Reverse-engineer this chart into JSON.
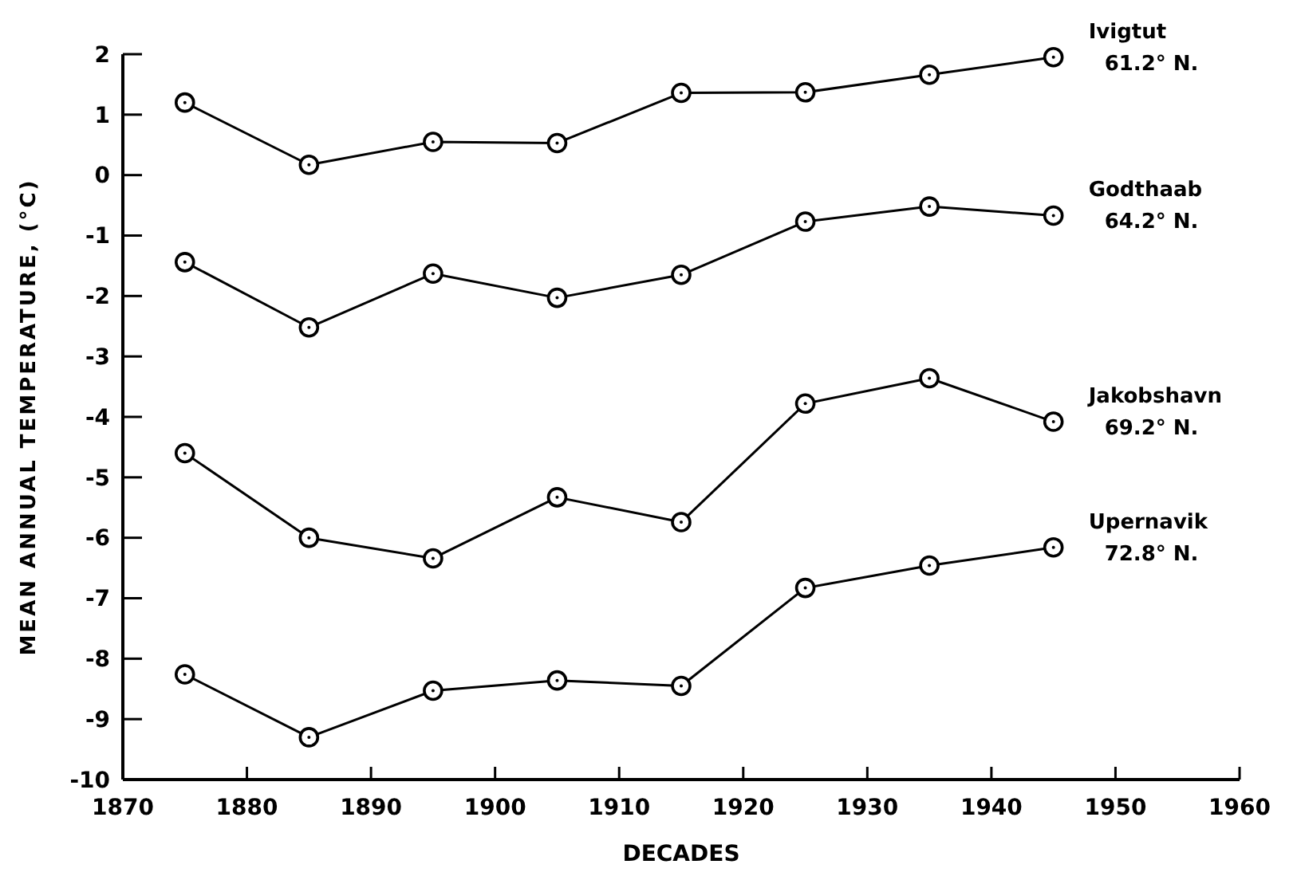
{
  "chart_data": {
    "type": "line",
    "xlabel": "DECADES",
    "ylabel": "MEAN ANNUAL TEMPERATURE, (°C)",
    "x": [
      1875,
      1885,
      1895,
      1905,
      1915,
      1925,
      1935,
      1945
    ],
    "series": [
      {
        "name": "Ivigtut 61.2° N.",
        "color": "#000000",
        "values": [
          1.2,
          0.17,
          0.55,
          0.53,
          1.36,
          1.37,
          1.66,
          1.95
        ]
      },
      {
        "name": "Godthaab 64.2° N.",
        "color": "#000000",
        "values": [
          -1.44,
          -2.52,
          -1.63,
          -2.03,
          -1.65,
          -0.77,
          -0.52,
          -0.67
        ]
      },
      {
        "name": "Jakobshavn 69.2° N.",
        "color": "#000000",
        "values": [
          -4.6,
          -6.0,
          -6.34,
          -5.33,
          -5.74,
          -3.78,
          -3.36,
          -4.08
        ]
      },
      {
        "name": "Upernavik 72.8° N.",
        "color": "#000000",
        "values": [
          -8.26,
          -9.3,
          -8.53,
          -8.36,
          -8.45,
          -6.83,
          -6.46,
          -6.16
        ]
      }
    ],
    "xlim": [
      1870,
      1960
    ],
    "xticks": [
      1870,
      1880,
      1890,
      1900,
      1910,
      1920,
      1930,
      1940,
      1950,
      1960
    ],
    "ylim": [
      -10,
      2
    ],
    "yticks": [
      -10,
      -9,
      -8,
      -7,
      -6,
      -5,
      -4,
      -3,
      -2,
      -1,
      0,
      1,
      2
    ],
    "grid": false,
    "marker": "circle",
    "line_style": "solid"
  }
}
